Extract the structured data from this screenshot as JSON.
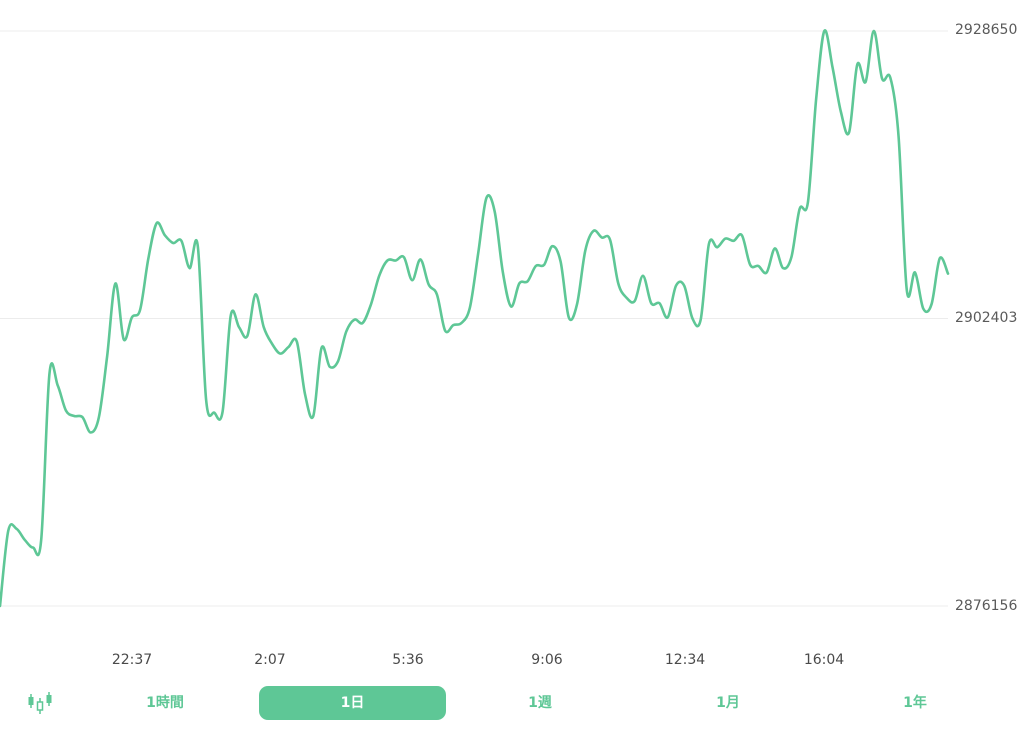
{
  "chart_data": {
    "type": "line",
    "color": "#5ec796",
    "y_ticks": [
      "2928650",
      "2902403",
      "2876156"
    ],
    "ylim": [
      2876156,
      2928650
    ],
    "x_ticks": [
      "22:37",
      "2:07",
      "5:36",
      "9:06",
      "12:34",
      "16:04"
    ],
    "grid": true,
    "values": [
      2876156,
      2883000,
      2883200,
      2882200,
      2881500,
      2882200,
      2897400,
      2896300,
      2894000,
      2893500,
      2893400,
      2892000,
      2893400,
      2899000,
      2905600,
      2900500,
      2902500,
      2903200,
      2907900,
      2911100,
      2910000,
      2909300,
      2909500,
      2907000,
      2909000,
      2895000,
      2893800,
      2893900,
      2902700,
      2901600,
      2900800,
      2904600,
      2901600,
      2900100,
      2899200,
      2899800,
      2900300,
      2895500,
      2893500,
      2899700,
      2898000,
      2898500,
      2901200,
      2902300,
      2902000,
      2903700,
      2906300,
      2907700,
      2907700,
      2908000,
      2905900,
      2907800,
      2905500,
      2904600,
      2901300,
      2901800,
      2902000,
      2903400,
      2908300,
      2913400,
      2912200,
      2906600,
      2903500,
      2905600,
      2905800,
      2907200,
      2907300,
      2909000,
      2907600,
      2902500,
      2903700,
      2908600,
      2910400,
      2909800,
      2909600,
      2905600,
      2904300,
      2904000,
      2906300,
      2903800,
      2903800,
      2902500,
      2905400,
      2905400,
      2902400,
      2902300,
      2909200,
      2908900,
      2909700,
      2909500,
      2910000,
      2907300,
      2907200,
      2906600,
      2908800,
      2907000,
      2908000,
      2912400,
      2913000,
      2922400,
      2928650,
      2925300,
      2921300,
      2919400,
      2925600,
      2924000,
      2928650,
      2924300,
      2924400,
      2919100,
      2905000,
      2906600,
      2903300,
      2903700,
      2907900,
      2906500
    ]
  },
  "tabs": {
    "candle_icon": "candlestick-icon",
    "items": [
      "1時間",
      "1日",
      "1週",
      "1月",
      "1年"
    ],
    "active": "1日"
  }
}
